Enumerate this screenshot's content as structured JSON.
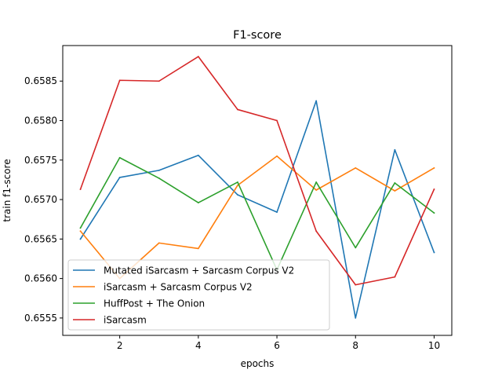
{
  "chart_data": {
    "type": "line",
    "title": "F1-score",
    "xlabel": "epochs",
    "ylabel": "train f1-score",
    "x": [
      1,
      2,
      3,
      4,
      5,
      6,
      7,
      8,
      9,
      10
    ],
    "xlim": [
      0.55,
      10.45
    ],
    "ylim": [
      0.65528,
      0.65895
    ],
    "x_ticks": [
      2,
      4,
      6,
      8,
      10
    ],
    "x_tick_labels": [
      "2",
      "4",
      "6",
      "8",
      "10"
    ],
    "y_ticks": [
      0.6555,
      0.656,
      0.6565,
      0.657,
      0.6575,
      0.658,
      0.6585
    ],
    "y_tick_labels": [
      "0.6555",
      "0.6560",
      "0.6565",
      "0.6570",
      "0.6575",
      "0.6580",
      "0.6585"
    ],
    "grid": false,
    "legend_position": "lower-left",
    "series": [
      {
        "name": "Mutated iSarcasm + Sarcasm Corpus V2",
        "color": "#1f77b4",
        "values": [
          0.6565,
          0.65728,
          0.65737,
          0.65756,
          0.65706,
          0.65684,
          0.65825,
          0.6555,
          0.65763,
          0.65633
        ]
      },
      {
        "name": "iSarcasm + Sarcasm Corpus V2",
        "color": "#ff7f0e",
        "values": [
          0.6566,
          0.656,
          0.65645,
          0.65638,
          0.65718,
          0.65755,
          0.65712,
          0.6574,
          0.65711,
          0.6574
        ]
      },
      {
        "name": "HuffPost + The Onion",
        "color": "#2ca02c",
        "values": [
          0.65664,
          0.65753,
          0.65727,
          0.65696,
          0.65722,
          0.65611,
          0.65722,
          0.65639,
          0.65721,
          0.65683
        ]
      },
      {
        "name": "iSarcasm",
        "color": "#d62728",
        "values": [
          0.65713,
          0.65851,
          0.6585,
          0.65881,
          0.65814,
          0.658,
          0.6566,
          0.65592,
          0.65602,
          0.65713
        ]
      }
    ]
  }
}
